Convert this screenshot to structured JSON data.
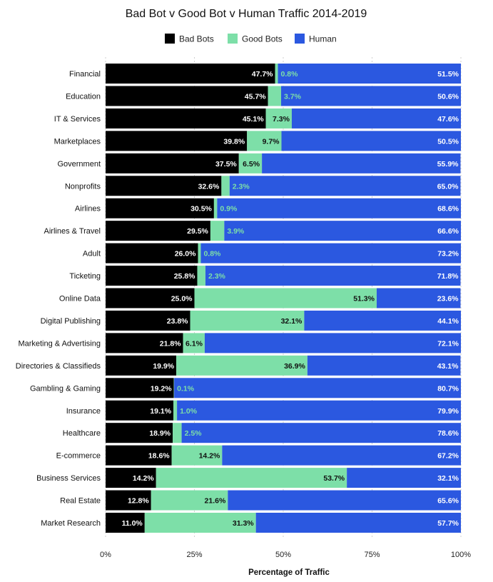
{
  "chart_data": {
    "type": "bar",
    "orientation": "horizontal",
    "stacked": true,
    "title": "Bad Bot v Good Bot v Human Traffic 2014-2019",
    "xlabel": "Percentage of Traffic",
    "ylabel": "",
    "xlim": [
      0,
      100
    ],
    "x_ticks": [
      0,
      25,
      50,
      75,
      100
    ],
    "x_tick_labels": [
      "0%",
      "25%",
      "50%",
      "75%",
      "100%"
    ],
    "grid": true,
    "legend_position": "top",
    "categories": [
      "Financial",
      "Education",
      "IT & Services",
      "Marketplaces",
      "Government",
      "Nonprofits",
      "Airlines",
      "Airlines & Travel",
      "Adult",
      "Ticketing",
      "Online Data",
      "Digital Publishing",
      "Marketing & Advertising",
      "Directories & Classifieds",
      "Gambling & Gaming",
      "Insurance",
      "Healthcare",
      "E-commerce",
      "Business Services",
      "Real Estate",
      "Market Research"
    ],
    "series": [
      {
        "name": "Bad Bots",
        "color": "#000000",
        "values": [
          47.7,
          45.7,
          45.1,
          39.8,
          37.5,
          32.6,
          30.5,
          29.5,
          26.0,
          25.8,
          25.0,
          23.8,
          21.8,
          19.9,
          19.2,
          19.1,
          18.9,
          18.6,
          14.2,
          12.8,
          11.0
        ]
      },
      {
        "name": "Good Bots",
        "color": "#7ddfa8",
        "values": [
          0.8,
          3.7,
          7.3,
          9.7,
          6.5,
          2.3,
          0.9,
          3.9,
          0.8,
          2.3,
          51.3,
          32.1,
          6.1,
          36.9,
          0.1,
          1.0,
          2.5,
          14.2,
          53.7,
          21.6,
          31.3
        ]
      },
      {
        "name": "Human",
        "color": "#2b58e0",
        "values": [
          51.5,
          50.6,
          47.6,
          50.5,
          55.9,
          65.0,
          68.6,
          66.6,
          73.2,
          71.8,
          23.6,
          44.1,
          72.1,
          43.1,
          80.7,
          79.9,
          78.6,
          67.2,
          32.1,
          65.6,
          57.7
        ]
      }
    ],
    "value_labels": [
      [
        "47.7%",
        "45.7%",
        "45.1%",
        "39.8%",
        "37.5%",
        "32.6%",
        "30.5%",
        "29.5%",
        "26.0%",
        "25.8%",
        "25.0%",
        "23.8%",
        "21.8%",
        "19.9%",
        "19.2%",
        "19.1%",
        "18.9%",
        "18.6%",
        "14.2%",
        "12.8%",
        "11.0%"
      ],
      [
        "0.8%",
        "3.7%",
        "7.3%",
        "9.7%",
        "6.5%",
        "2.3%",
        "0.9%",
        "3.9%",
        "0.8%",
        "2.3%",
        "51.3%",
        "32.1%",
        "6.1%",
        "36.9%",
        "0.1%",
        "1.0%",
        "2.5%",
        "14.2%",
        "53.7%",
        "21.6%",
        "31.3%"
      ],
      [
        "51.5%",
        "50.6%",
        "47.6%",
        "50.5%",
        "55.9%",
        "65.0%",
        "68.6%",
        "66.6%",
        "73.2%",
        "71.8%",
        "23.6%",
        "44.1%",
        "72.1%",
        "43.1%",
        "80.7%",
        "79.9%",
        "78.6%",
        "67.2%",
        "32.1%",
        "65.6%",
        "57.7%"
      ]
    ],
    "label_colors": {
      "on_dark": "#ffffff",
      "on_green": "#111111",
      "outside_green": "#7ddfa8"
    }
  }
}
